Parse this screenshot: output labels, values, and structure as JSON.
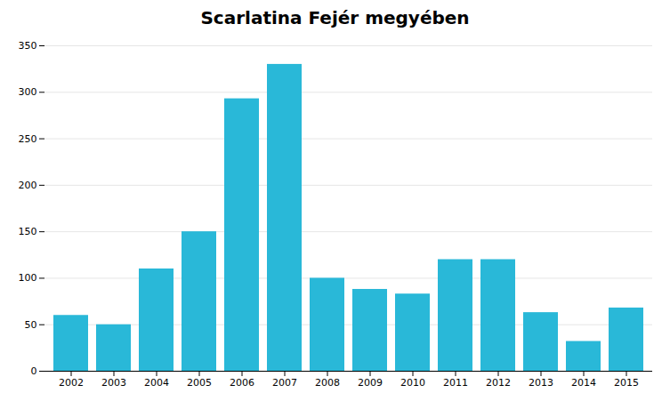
{
  "chart_data": {
    "type": "bar",
    "title": "Scarlatina Fejér megyében",
    "categories": [
      "2002",
      "2003",
      "2004",
      "2005",
      "2006",
      "2007",
      "2008",
      "2009",
      "2010",
      "2011",
      "2012",
      "2013",
      "2014",
      "2015"
    ],
    "values": [
      60,
      50,
      110,
      150,
      293,
      330,
      100,
      88,
      83,
      120,
      120,
      63,
      32,
      68
    ],
    "color": "#29B8D8",
    "ylim": [
      0,
      350
    ],
    "yticks": [
      0,
      50,
      100,
      150,
      200,
      250,
      300,
      350
    ],
    "grid": true
  }
}
